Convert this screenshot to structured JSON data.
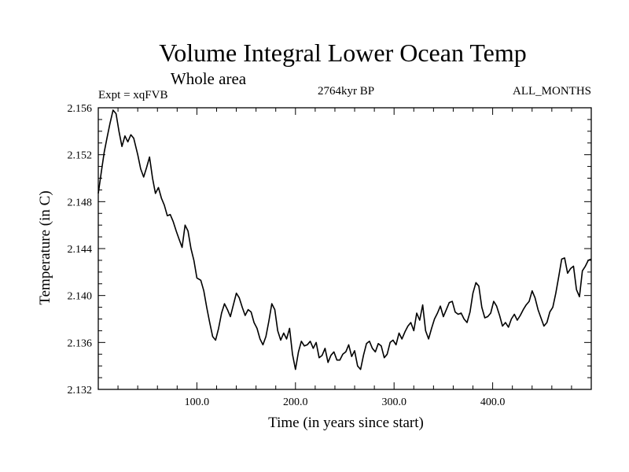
{
  "chart_data": {
    "type": "line",
    "title": "Volume Integral Lower Ocean Temp",
    "subtitle": "Whole area",
    "expt_label": "Expt = xqFVB",
    "period_label": "2764kyr BP",
    "months_label": "ALL_MONTHS",
    "xlabel": "Time (in years since start)",
    "ylabel": "Temperature (in C)",
    "xlim": [
      0,
      500
    ],
    "ylim": [
      2.132,
      2.156
    ],
    "x_ticks": [
      100,
      200,
      300,
      400
    ],
    "x_tick_labels": [
      "100.0",
      "200.0",
      "300.0",
      "400.0"
    ],
    "y_ticks": [
      2.132,
      2.136,
      2.14,
      2.144,
      2.148,
      2.152,
      2.156
    ],
    "y_tick_labels": [
      "2.132",
      "2.136",
      "2.140",
      "2.144",
      "2.148",
      "2.152",
      "2.156"
    ],
    "series": [
      {
        "name": "xqFVB",
        "color": "#000000",
        "x": [
          0,
          3,
          6,
          9,
          12,
          15,
          18,
          21,
          24,
          27,
          30,
          33,
          36,
          40,
          43,
          46,
          49,
          52,
          55,
          58,
          61,
          64,
          67,
          70,
          73,
          76,
          79,
          82,
          85,
          88,
          91,
          94,
          97,
          100,
          104,
          107,
          110,
          113,
          116,
          119,
          122,
          125,
          128,
          131,
          134,
          137,
          140,
          143,
          146,
          149,
          152,
          155,
          158,
          161,
          164,
          167,
          170,
          173,
          176,
          179,
          182,
          185,
          188,
          191,
          194,
          197,
          200,
          203,
          206,
          209,
          212,
          215,
          218,
          221,
          224,
          227,
          230,
          233,
          236,
          239,
          242,
          245,
          248,
          251,
          254,
          257,
          260,
          263,
          266,
          269,
          272,
          275,
          278,
          281,
          284,
          287,
          290,
          293,
          296,
          299,
          302,
          305,
          308,
          311,
          314,
          317,
          320,
          323,
          326,
          329,
          332,
          335,
          338,
          341,
          344,
          347,
          350,
          353,
          356,
          359,
          362,
          365,
          368,
          371,
          374,
          377,
          380,
          383,
          386,
          389,
          392,
          395,
          398,
          401,
          404,
          407,
          410,
          413,
          416,
          419,
          422,
          425,
          428,
          431,
          434,
          437,
          440,
          443,
          446,
          449,
          452,
          455,
          458,
          461,
          464,
          467,
          470,
          473,
          476,
          479,
          482,
          485,
          488,
          491,
          494,
          497,
          500
        ],
        "values": [
          2.1487,
          2.1505,
          2.1522,
          2.1535,
          2.1547,
          2.1558,
          2.1555,
          2.154,
          2.1527,
          2.1536,
          2.1531,
          2.1537,
          2.1534,
          2.152,
          2.1508,
          2.1501,
          2.1509,
          2.1518,
          2.15,
          2.1487,
          2.1492,
          2.1483,
          2.1477,
          2.1468,
          2.1469,
          2.1463,
          2.1455,
          2.1448,
          2.1441,
          2.146,
          2.1455,
          2.144,
          2.143,
          2.1415,
          2.1413,
          2.1404,
          2.139,
          2.1377,
          2.1365,
          2.1362,
          2.1372,
          2.1385,
          2.1393,
          2.1388,
          2.1382,
          2.1392,
          2.1402,
          2.1398,
          2.139,
          2.1383,
          2.1388,
          2.1386,
          2.1377,
          2.1372,
          2.1363,
          2.1358,
          2.1365,
          2.1378,
          2.1393,
          2.1388,
          2.137,
          2.1362,
          2.1368,
          2.1363,
          2.1372,
          2.135,
          2.1337,
          2.1352,
          2.1361,
          2.1357,
          2.1358,
          2.1361,
          2.1355,
          2.136,
          2.1347,
          2.1349,
          2.1355,
          2.1343,
          2.1349,
          2.1352,
          2.1345,
          2.1345,
          2.135,
          2.1352,
          2.1358,
          2.1348,
          2.1353,
          2.134,
          2.1337,
          2.1349,
          2.1359,
          2.1361,
          2.1355,
          2.1352,
          2.1359,
          2.1357,
          2.1347,
          2.135,
          2.136,
          2.1362,
          2.1358,
          2.1368,
          2.1363,
          2.1369,
          2.1374,
          2.1377,
          2.137,
          2.1385,
          2.1379,
          2.1392,
          2.137,
          2.1363,
          2.1372,
          2.138,
          2.1385,
          2.1391,
          2.1382,
          2.1388,
          2.1394,
          2.1395,
          2.1386,
          2.1384,
          2.1385,
          2.138,
          2.1377,
          2.1386,
          2.1402,
          2.1411,
          2.1408,
          2.139,
          2.1381,
          2.1382,
          2.1385,
          2.1395,
          2.1391,
          2.1383,
          2.1374,
          2.1377,
          2.1373,
          2.138,
          2.1384,
          2.1379,
          2.1383,
          2.1388,
          2.1392,
          2.1395,
          2.1404,
          2.1398,
          2.1388,
          2.1381,
          2.1374,
          2.1377,
          2.1386,
          2.139,
          2.1402,
          2.1416,
          2.1431,
          2.1432,
          2.1419,
          2.1423,
          2.1425,
          2.1405,
          2.1399,
          2.1421,
          2.1425,
          2.143,
          2.1431
        ]
      }
    ]
  }
}
